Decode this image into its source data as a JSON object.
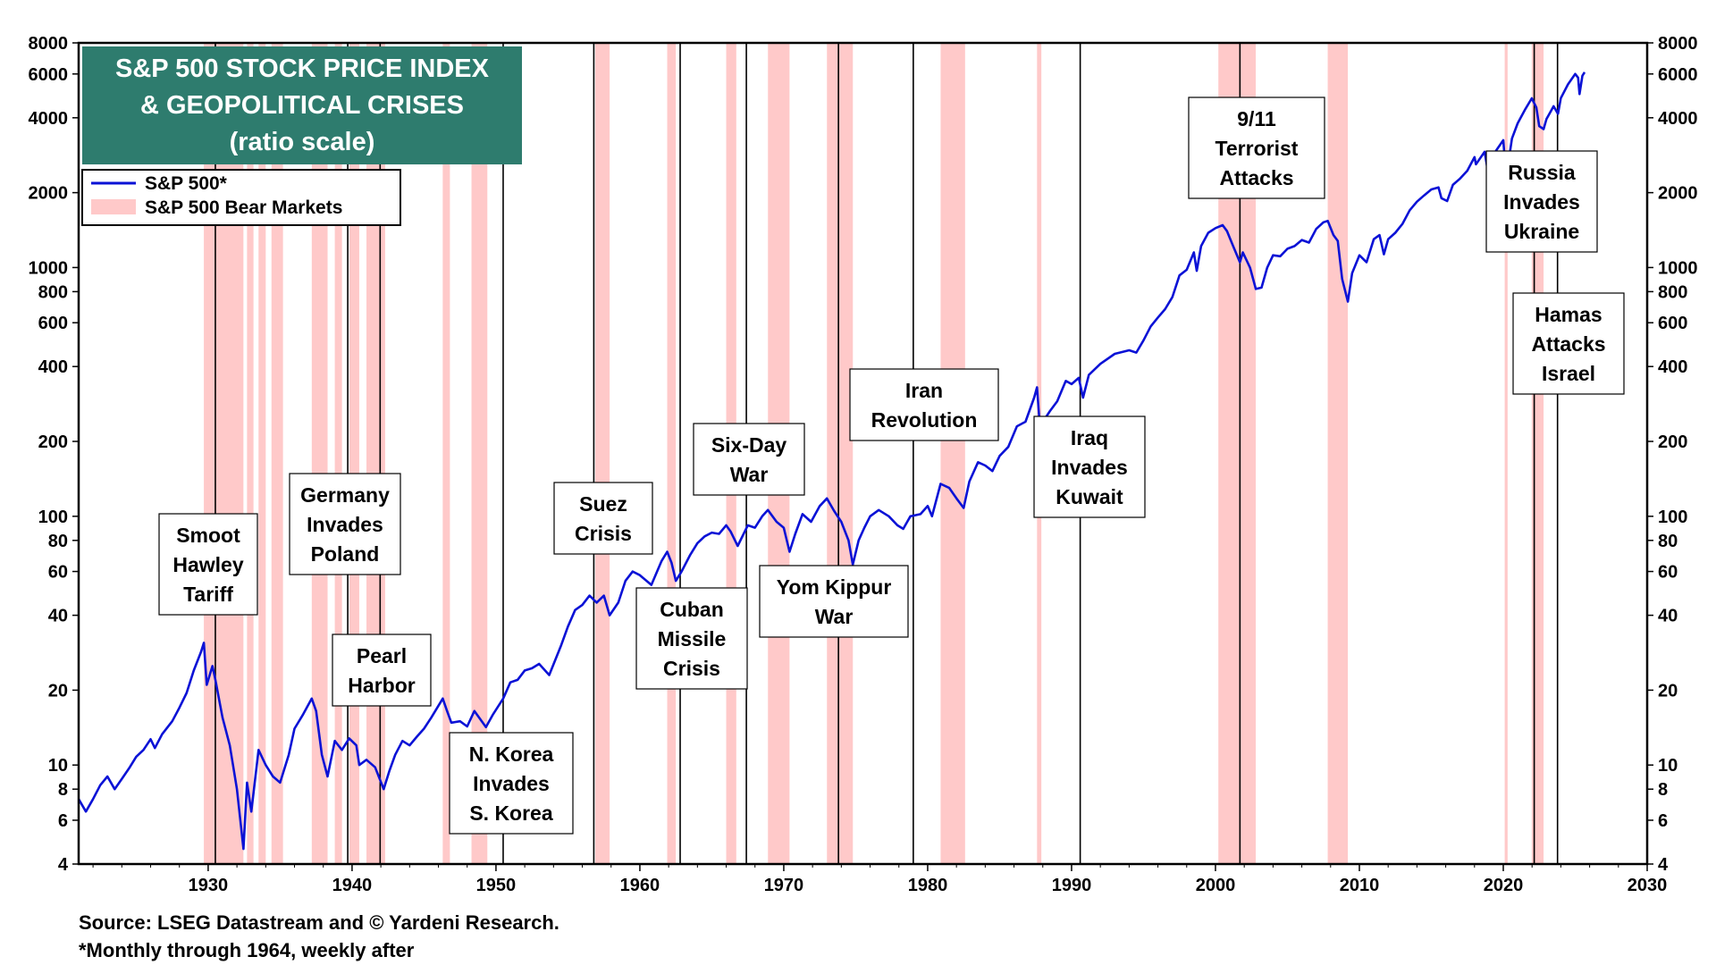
{
  "chart_data": {
    "type": "line",
    "title": "S&P 500 STOCK PRICE INDEX",
    "title_line2": "& GEOPOLITICAL CRISES",
    "subtitle": "(ratio scale)",
    "xlim": [
      1921,
      2030
    ],
    "ylim": [
      4,
      8000
    ],
    "yscale": "log",
    "x_ticks": [
      1930,
      1940,
      1950,
      1960,
      1970,
      1980,
      1990,
      2000,
      2010,
      2020,
      2030
    ],
    "y_ticks": [
      4,
      6,
      8,
      10,
      20,
      40,
      60,
      80,
      100,
      200,
      400,
      600,
      800,
      1000,
      2000,
      4000,
      6000,
      8000
    ],
    "legend": {
      "position": "top-left",
      "line_label": "S&P 500*",
      "band_label": "S&P 500 Bear Markets"
    },
    "colors": {
      "line": "#0b12d6",
      "band": "#ffc9c9",
      "title_bg": "#2e7c6e"
    },
    "series": [
      {
        "name": "S&P 500*",
        "points": [
          [
            1921.0,
            7.3
          ],
          [
            1921.5,
            6.5
          ],
          [
            1922.0,
            7.3
          ],
          [
            1922.5,
            8.3
          ],
          [
            1923.0,
            9.0
          ],
          [
            1923.5,
            8.0
          ],
          [
            1924.0,
            8.8
          ],
          [
            1924.5,
            9.7
          ],
          [
            1925.0,
            10.8
          ],
          [
            1925.5,
            11.5
          ],
          [
            1926.0,
            12.7
          ],
          [
            1926.3,
            11.7
          ],
          [
            1926.8,
            13.3
          ],
          [
            1927.5,
            15.0
          ],
          [
            1928.0,
            17.0
          ],
          [
            1928.5,
            19.5
          ],
          [
            1929.0,
            24.0
          ],
          [
            1929.5,
            28.5
          ],
          [
            1929.7,
            31.0
          ],
          [
            1929.9,
            21.0
          ],
          [
            1930.3,
            25.0
          ],
          [
            1930.5,
            22.0
          ],
          [
            1931.0,
            15.5
          ],
          [
            1931.5,
            12.0
          ],
          [
            1932.0,
            8.0
          ],
          [
            1932.45,
            4.6
          ],
          [
            1932.7,
            8.5
          ],
          [
            1933.0,
            6.5
          ],
          [
            1933.5,
            11.5
          ],
          [
            1934.0,
            10.0
          ],
          [
            1934.5,
            9.0
          ],
          [
            1935.0,
            8.5
          ],
          [
            1935.6,
            11.0
          ],
          [
            1936.0,
            14.0
          ],
          [
            1936.6,
            16.0
          ],
          [
            1937.2,
            18.5
          ],
          [
            1937.5,
            16.5
          ],
          [
            1937.9,
            11.0
          ],
          [
            1938.3,
            9.0
          ],
          [
            1938.8,
            12.5
          ],
          [
            1939.3,
            11.5
          ],
          [
            1939.8,
            12.8
          ],
          [
            1940.3,
            12.0
          ],
          [
            1940.5,
            10.0
          ],
          [
            1941.0,
            10.5
          ],
          [
            1941.6,
            9.8
          ],
          [
            1942.2,
            8.0
          ],
          [
            1942.6,
            9.5
          ],
          [
            1943.0,
            11.0
          ],
          [
            1943.5,
            12.5
          ],
          [
            1944.0,
            12.0
          ],
          [
            1944.5,
            13.0
          ],
          [
            1945.0,
            14.0
          ],
          [
            1945.5,
            15.5
          ],
          [
            1946.3,
            18.5
          ],
          [
            1946.6,
            16.5
          ],
          [
            1946.9,
            14.8
          ],
          [
            1947.5,
            15.0
          ],
          [
            1948.0,
            14.3
          ],
          [
            1948.5,
            16.5
          ],
          [
            1949.3,
            14.2
          ],
          [
            1949.8,
            16.0
          ],
          [
            1950.5,
            18.5
          ],
          [
            1951.0,
            21.5
          ],
          [
            1951.5,
            22.0
          ],
          [
            1952.0,
            24.0
          ],
          [
            1952.5,
            24.5
          ],
          [
            1953.0,
            25.5
          ],
          [
            1953.7,
            23.0
          ],
          [
            1954.5,
            30.0
          ],
          [
            1955.0,
            36.0
          ],
          [
            1955.5,
            42.0
          ],
          [
            1956.0,
            44.0
          ],
          [
            1956.5,
            48.0
          ],
          [
            1957.0,
            45.0
          ],
          [
            1957.5,
            48.0
          ],
          [
            1957.9,
            40.0
          ],
          [
            1958.5,
            45.0
          ],
          [
            1959.0,
            55.0
          ],
          [
            1959.5,
            60.0
          ],
          [
            1960.0,
            58.0
          ],
          [
            1960.8,
            53.0
          ],
          [
            1961.5,
            66.0
          ],
          [
            1961.9,
            72.0
          ],
          [
            1962.2,
            65.0
          ],
          [
            1962.5,
            55.0
          ],
          [
            1962.9,
            60.0
          ],
          [
            1963.5,
            70.0
          ],
          [
            1964.0,
            78.0
          ],
          [
            1964.5,
            83.0
          ],
          [
            1965.0,
            86.0
          ],
          [
            1965.5,
            85.0
          ],
          [
            1966.0,
            92.0
          ],
          [
            1966.3,
            87.0
          ],
          [
            1966.8,
            76.0
          ],
          [
            1967.5,
            92.0
          ],
          [
            1968.0,
            90.0
          ],
          [
            1968.5,
            100.0
          ],
          [
            1968.9,
            106.0
          ],
          [
            1969.5,
            95.0
          ],
          [
            1970.0,
            90.0
          ],
          [
            1970.4,
            72.0
          ],
          [
            1970.8,
            85.0
          ],
          [
            1971.3,
            102.0
          ],
          [
            1971.9,
            95.0
          ],
          [
            1972.5,
            110.0
          ],
          [
            1973.0,
            118.0
          ],
          [
            1973.5,
            105.0
          ],
          [
            1974.0,
            95.0
          ],
          [
            1974.5,
            80.0
          ],
          [
            1974.8,
            64.0
          ],
          [
            1975.2,
            80.0
          ],
          [
            1975.6,
            90.0
          ],
          [
            1976.0,
            100.0
          ],
          [
            1976.6,
            106.0
          ],
          [
            1977.3,
            100.0
          ],
          [
            1977.9,
            92.0
          ],
          [
            1978.3,
            89.0
          ],
          [
            1978.8,
            100.0
          ],
          [
            1979.5,
            102.0
          ],
          [
            1980.0,
            110.0
          ],
          [
            1980.3,
            100.0
          ],
          [
            1980.9,
            135.0
          ],
          [
            1981.5,
            130.0
          ],
          [
            1982.0,
            118.0
          ],
          [
            1982.5,
            108.0
          ],
          [
            1982.9,
            138.0
          ],
          [
            1983.5,
            165.0
          ],
          [
            1984.0,
            160.0
          ],
          [
            1984.5,
            152.0
          ],
          [
            1985.0,
            175.0
          ],
          [
            1985.6,
            190.0
          ],
          [
            1986.2,
            230.0
          ],
          [
            1986.8,
            240.0
          ],
          [
            1987.4,
            300.0
          ],
          [
            1987.6,
            330.0
          ],
          [
            1987.8,
            230.0
          ],
          [
            1988.5,
            265.0
          ],
          [
            1989.0,
            290.0
          ],
          [
            1989.6,
            350.0
          ],
          [
            1990.0,
            340.0
          ],
          [
            1990.5,
            360.0
          ],
          [
            1990.8,
            300.0
          ],
          [
            1991.2,
            370.0
          ],
          [
            1992.0,
            410.0
          ],
          [
            1993.0,
            450.0
          ],
          [
            1994.0,
            465.0
          ],
          [
            1994.5,
            455.0
          ],
          [
            1995.0,
            510.0
          ],
          [
            1995.5,
            580.0
          ],
          [
            1996.0,
            630.0
          ],
          [
            1996.5,
            680.0
          ],
          [
            1997.0,
            760.0
          ],
          [
            1997.5,
            930.0
          ],
          [
            1998.0,
            980.0
          ],
          [
            1998.5,
            1150.0
          ],
          [
            1998.7,
            970.0
          ],
          [
            1999.0,
            1220.0
          ],
          [
            1999.5,
            1380.0
          ],
          [
            2000.0,
            1440.0
          ],
          [
            2000.5,
            1480.0
          ],
          [
            2000.8,
            1400.0
          ],
          [
            2001.2,
            1230.0
          ],
          [
            2001.7,
            1050.0
          ],
          [
            2001.9,
            1150.0
          ],
          [
            2002.4,
            1000.0
          ],
          [
            2002.8,
            820.0
          ],
          [
            2003.2,
            830.0
          ],
          [
            2003.6,
            1000.0
          ],
          [
            2004.0,
            1120.0
          ],
          [
            2004.5,
            1110.0
          ],
          [
            2005.0,
            1190.0
          ],
          [
            2005.5,
            1220.0
          ],
          [
            2006.0,
            1290.0
          ],
          [
            2006.5,
            1260.0
          ],
          [
            2007.0,
            1430.0
          ],
          [
            2007.5,
            1520.0
          ],
          [
            2007.8,
            1540.0
          ],
          [
            2008.2,
            1350.0
          ],
          [
            2008.5,
            1280.0
          ],
          [
            2008.8,
            900.0
          ],
          [
            2009.2,
            730.0
          ],
          [
            2009.5,
            950.0
          ],
          [
            2010.0,
            1120.0
          ],
          [
            2010.5,
            1050.0
          ],
          [
            2011.0,
            1300.0
          ],
          [
            2011.4,
            1350.0
          ],
          [
            2011.7,
            1130.0
          ],
          [
            2012.0,
            1300.0
          ],
          [
            2012.5,
            1380.0
          ],
          [
            2013.0,
            1500.0
          ],
          [
            2013.5,
            1700.0
          ],
          [
            2014.0,
            1840.0
          ],
          [
            2014.5,
            1950.0
          ],
          [
            2015.0,
            2060.0
          ],
          [
            2015.5,
            2100.0
          ],
          [
            2015.7,
            1900.0
          ],
          [
            2016.1,
            1850.0
          ],
          [
            2016.5,
            2150.0
          ],
          [
            2017.0,
            2280.0
          ],
          [
            2017.5,
            2450.0
          ],
          [
            2018.0,
            2780.0
          ],
          [
            2018.1,
            2600.0
          ],
          [
            2018.7,
            2920.0
          ],
          [
            2018.95,
            2400.0
          ],
          [
            2019.5,
            2950.0
          ],
          [
            2020.0,
            3250.0
          ],
          [
            2020.2,
            2300.0
          ],
          [
            2020.6,
            3300.0
          ],
          [
            2021.0,
            3800.0
          ],
          [
            2021.5,
            4300.0
          ],
          [
            2021.98,
            4790.0
          ],
          [
            2022.3,
            4400.0
          ],
          [
            2022.5,
            3700.0
          ],
          [
            2022.8,
            3600.0
          ],
          [
            2023.0,
            3950.0
          ],
          [
            2023.5,
            4450.0
          ],
          [
            2023.8,
            4150.0
          ],
          [
            2024.0,
            4800.0
          ],
          [
            2024.5,
            5450.0
          ],
          [
            2025.0,
            6000.0
          ],
          [
            2025.2,
            5800.0
          ],
          [
            2025.3,
            4980.0
          ],
          [
            2025.5,
            5900.0
          ],
          [
            2025.65,
            6100.0
          ]
        ]
      }
    ],
    "bear_markets": [
      [
        1929.7,
        1932.45
      ],
      [
        1932.7,
        1933.15
      ],
      [
        1933.5,
        1934.0
      ],
      [
        1934.4,
        1935.2
      ],
      [
        1937.2,
        1938.3
      ],
      [
        1938.8,
        1939.3
      ],
      [
        1939.8,
        1940.5
      ],
      [
        1941.0,
        1942.3
      ],
      [
        1946.3,
        1946.8
      ],
      [
        1948.3,
        1949.4
      ],
      [
        1956.9,
        1957.9
      ],
      [
        1961.9,
        1962.5
      ],
      [
        1966.0,
        1966.7
      ],
      [
        1968.9,
        1970.4
      ],
      [
        1973.0,
        1974.8
      ],
      [
        1980.9,
        1982.6
      ],
      [
        1987.6,
        1987.9
      ],
      [
        2000.2,
        2002.8
      ],
      [
        2007.8,
        2009.2
      ],
      [
        2020.1,
        2020.3
      ],
      [
        2021.98,
        2022.8
      ]
    ],
    "events": [
      {
        "x": 1930.5,
        "lines": [
          "Smoot",
          "Hawley",
          "Tariff"
        ]
      },
      {
        "x": 1939.7,
        "lines": [
          "Germany",
          "Invades",
          "Poland"
        ]
      },
      {
        "x": 1941.95,
        "lines": [
          "Pearl",
          "Harbor"
        ]
      },
      {
        "x": 1950.5,
        "lines": [
          "N. Korea",
          "Invades",
          "S. Korea"
        ]
      },
      {
        "x": 1956.8,
        "lines": [
          "Suez",
          "Crisis"
        ]
      },
      {
        "x": 1962.8,
        "lines": [
          "Cuban",
          "Missile",
          "Crisis"
        ]
      },
      {
        "x": 1967.4,
        "lines": [
          "Six-Day",
          "War"
        ]
      },
      {
        "x": 1973.8,
        "lines": [
          "Yom Kippur",
          "War"
        ]
      },
      {
        "x": 1979.0,
        "lines": [
          "Iran",
          "Revolution"
        ]
      },
      {
        "x": 1990.6,
        "lines": [
          "Iraq",
          "Invades",
          "Kuwait"
        ]
      },
      {
        "x": 2001.7,
        "lines": [
          "9/11",
          "Terrorist",
          "Attacks"
        ]
      },
      {
        "x": 2022.15,
        "lines": [
          "Russia",
          "Invades",
          "Ukraine"
        ]
      },
      {
        "x": 2023.77,
        "lines": [
          "Hamas",
          "Attacks",
          "Israel"
        ]
      }
    ]
  },
  "footer": {
    "source": "Source: LSEG Datastream and © Yardeni Research.",
    "note": "*Monthly through 1964, weekly after"
  }
}
